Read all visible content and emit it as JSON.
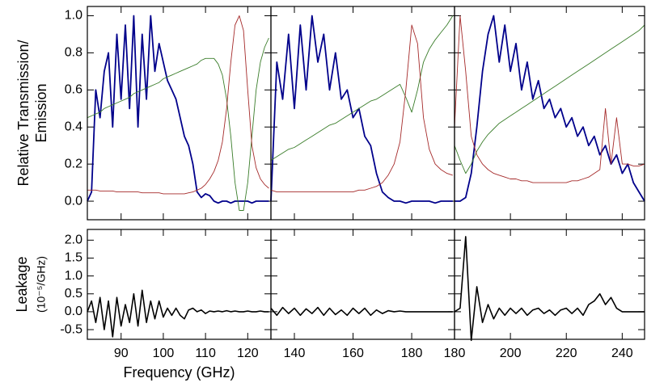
{
  "chart_data": [
    {
      "type": "line",
      "ylabel": [
        "Relative Transmission/",
        "Emission"
      ],
      "x": [
        82,
        83,
        84,
        85,
        86,
        87,
        88,
        89,
        90,
        91,
        92,
        93,
        94,
        95,
        96,
        97,
        98,
        99,
        100,
        101,
        102,
        103,
        104,
        105,
        106,
        107,
        108,
        109,
        110,
        111,
        112,
        113,
        114,
        115,
        116,
        117,
        118,
        119,
        120,
        121,
        122,
        123,
        124,
        125
      ],
      "xlim": [
        82,
        125.5
      ],
      "xticks": [
        90,
        100,
        110,
        120
      ],
      "ylim": [
        -0.1,
        1.05
      ],
      "yticks": [
        {
          "value": 0,
          "label": "0.0"
        },
        0.2,
        0.4,
        0.6,
        0.8,
        {
          "value": 1,
          "label": "1.0"
        }
      ],
      "series": [
        {
          "color": "#00008b",
          "values": [
            0.0,
            0.05,
            0.6,
            0.45,
            0.7,
            0.8,
            0.4,
            0.9,
            0.55,
            0.95,
            0.5,
            1.0,
            0.4,
            0.9,
            0.55,
            1.0,
            0.7,
            0.85,
            0.75,
            0.65,
            0.6,
            0.55,
            0.45,
            0.35,
            0.3,
            0.2,
            0.05,
            0.02,
            0.04,
            0.03,
            0.0,
            -0.01,
            0.0,
            0.0,
            -0.01,
            0.0,
            0.0,
            0.0,
            0.0,
            -0.01,
            0.0,
            0.0,
            0.0,
            0.0
          ]
        },
        {
          "color": "#3a7d2a",
          "values": [
            0.45,
            0.46,
            0.47,
            0.48,
            0.5,
            0.51,
            0.52,
            0.53,
            0.54,
            0.55,
            0.56,
            0.58,
            0.59,
            0.6,
            0.61,
            0.62,
            0.63,
            0.64,
            0.66,
            0.67,
            0.68,
            0.69,
            0.7,
            0.71,
            0.72,
            0.73,
            0.74,
            0.76,
            0.77,
            0.77,
            0.77,
            0.74,
            0.68,
            0.55,
            0.35,
            0.1,
            -0.05,
            -0.05,
            0.1,
            0.35,
            0.6,
            0.75,
            0.83,
            0.88
          ]
        },
        {
          "color": "#a52a2a",
          "values": [
            0.06,
            0.06,
            0.06,
            0.055,
            0.055,
            0.055,
            0.055,
            0.05,
            0.05,
            0.05,
            0.05,
            0.05,
            0.05,
            0.045,
            0.045,
            0.045,
            0.045,
            0.045,
            0.04,
            0.04,
            0.04,
            0.04,
            0.04,
            0.04,
            0.045,
            0.05,
            0.06,
            0.07,
            0.09,
            0.12,
            0.16,
            0.22,
            0.32,
            0.5,
            0.75,
            0.95,
            1.0,
            0.92,
            0.6,
            0.3,
            0.18,
            0.12,
            0.09,
            0.07
          ]
        }
      ]
    },
    {
      "type": "line",
      "x": [
        132,
        134,
        136,
        138,
        140,
        142,
        144,
        146,
        148,
        150,
        152,
        154,
        156,
        158,
        160,
        162,
        164,
        166,
        168,
        170,
        172,
        174,
        176,
        178,
        180,
        182,
        184,
        186,
        188,
        190,
        192,
        194
      ],
      "xlim": [
        132,
        194.6
      ],
      "xticks": [
        140,
        160,
        180
      ],
      "ylim": [
        -0.1,
        1.05
      ],
      "yticks": [
        0,
        0.2,
        0.4,
        0.6,
        0.8,
        1
      ],
      "series": [
        {
          "color": "#00008b",
          "values": [
            0.0,
            0.75,
            0.55,
            0.9,
            0.5,
            0.95,
            0.6,
            1.0,
            0.75,
            0.9,
            0.6,
            0.8,
            0.55,
            0.6,
            0.45,
            0.5,
            0.35,
            0.3,
            0.15,
            0.05,
            0.02,
            0.0,
            0.0,
            -0.01,
            0.0,
            0.0,
            0.0,
            0.0,
            -0.01,
            0.0,
            0.0,
            0.0
          ]
        },
        {
          "color": "#3a7d2a",
          "values": [
            0.22,
            0.24,
            0.26,
            0.28,
            0.29,
            0.31,
            0.33,
            0.35,
            0.37,
            0.39,
            0.41,
            0.42,
            0.44,
            0.46,
            0.48,
            0.5,
            0.52,
            0.54,
            0.55,
            0.57,
            0.59,
            0.61,
            0.63,
            0.56,
            0.48,
            0.6,
            0.75,
            0.82,
            0.87,
            0.91,
            0.95,
            1.0
          ]
        },
        {
          "color": "#a52a2a",
          "values": [
            0.06,
            0.05,
            0.05,
            0.05,
            0.05,
            0.05,
            0.05,
            0.05,
            0.05,
            0.05,
            0.05,
            0.05,
            0.05,
            0.05,
            0.05,
            0.06,
            0.06,
            0.07,
            0.08,
            0.1,
            0.14,
            0.2,
            0.32,
            0.6,
            0.95,
            0.85,
            0.45,
            0.28,
            0.2,
            0.17,
            0.15,
            0.14
          ]
        }
      ]
    },
    {
      "type": "line",
      "x": [
        180,
        182,
        184,
        186,
        188,
        190,
        192,
        194,
        196,
        198,
        200,
        202,
        204,
        206,
        208,
        210,
        212,
        214,
        216,
        218,
        220,
        222,
        224,
        226,
        228,
        230,
        232,
        234,
        236,
        238,
        240,
        242,
        244,
        246,
        248
      ],
      "xlim": [
        180,
        248
      ],
      "xticks": [
        180,
        200,
        220,
        240
      ],
      "ylim": [
        -0.1,
        1.05
      ],
      "yticks": [
        0,
        0.2,
        0.4,
        0.6,
        0.8,
        1
      ],
      "series": [
        {
          "color": "#00008b",
          "values": [
            0.0,
            0.0,
            0.02,
            0.15,
            0.4,
            0.7,
            0.9,
            1.0,
            0.75,
            0.95,
            0.7,
            0.85,
            0.6,
            0.75,
            0.55,
            0.65,
            0.5,
            0.55,
            0.45,
            0.5,
            0.4,
            0.45,
            0.35,
            0.4,
            0.3,
            0.35,
            0.25,
            0.3,
            0.2,
            0.25,
            0.15,
            0.2,
            0.1,
            0.05,
            0.0
          ]
        },
        {
          "color": "#3a7d2a",
          "values": [
            0.3,
            0.22,
            0.15,
            0.2,
            0.27,
            0.32,
            0.36,
            0.39,
            0.42,
            0.44,
            0.46,
            0.48,
            0.5,
            0.52,
            0.54,
            0.56,
            0.58,
            0.6,
            0.62,
            0.64,
            0.66,
            0.68,
            0.7,
            0.72,
            0.74,
            0.76,
            0.78,
            0.8,
            0.82,
            0.84,
            0.86,
            0.88,
            0.9,
            0.92,
            0.95
          ]
        },
        {
          "color": "#a52a2a",
          "values": [
            0.4,
            1.0,
            0.7,
            0.35,
            0.25,
            0.2,
            0.17,
            0.15,
            0.14,
            0.13,
            0.12,
            0.12,
            0.11,
            0.11,
            0.1,
            0.1,
            0.1,
            0.1,
            0.1,
            0.1,
            0.1,
            0.11,
            0.11,
            0.12,
            0.13,
            0.15,
            0.17,
            0.5,
            0.2,
            0.45,
            0.2,
            0.2,
            0.19,
            0.19,
            0.2
          ]
        }
      ]
    },
    {
      "type": "line",
      "ylabel": "Leakage",
      "ylabel_units": "(10⁻⁵/GHz)",
      "xlabel": "Frequency (GHz)",
      "x": [
        82,
        83,
        84,
        85,
        86,
        87,
        88,
        89,
        90,
        91,
        92,
        93,
        94,
        95,
        96,
        97,
        98,
        99,
        100,
        101,
        102,
        103,
        104,
        105,
        106,
        107,
        108,
        109,
        110,
        111,
        112,
        113,
        114,
        115,
        116,
        117,
        118,
        119,
        120,
        121,
        122,
        123,
        124,
        125
      ],
      "xlim": [
        82,
        125.5
      ],
      "xticks": [
        90,
        100,
        110,
        120
      ],
      "ylim": [
        -0.77,
        2.3
      ],
      "yticks": [
        -0.5,
        {
          "value": 0,
          "label": "0.0"
        },
        0.5,
        {
          "value": 1,
          "label": "1.0"
        },
        1.5,
        {
          "value": 2,
          "label": "2.0"
        }
      ],
      "series": [
        {
          "color": "#000000",
          "values": [
            0,
            0.3,
            -0.3,
            0.4,
            -0.5,
            0.3,
            -0.7,
            0.4,
            -0.4,
            0.2,
            -0.3,
            0.5,
            -0.4,
            0.6,
            -0.3,
            0.3,
            -0.2,
            0.3,
            -0.15,
            0.1,
            -0.1,
            0.1,
            -0.1,
            -0.2,
            0.05,
            0.1,
            0.0,
            0.05,
            -0.05,
            0.02,
            0.0,
            0.02,
            0.0,
            0.03,
            0.0,
            0.02,
            0.0,
            0.0,
            0.02,
            0.0,
            0.0,
            0.02,
            0.0,
            0.0
          ]
        }
      ]
    },
    {
      "type": "line",
      "x": [
        132,
        134,
        136,
        138,
        140,
        142,
        144,
        146,
        148,
        150,
        152,
        154,
        156,
        158,
        160,
        162,
        164,
        166,
        168,
        170,
        172,
        174,
        176,
        178,
        180,
        182,
        184,
        186,
        188,
        190,
        192,
        194
      ],
      "xlim": [
        132,
        194.6
      ],
      "xticks": [
        140,
        160,
        180
      ],
      "ylim": [
        -0.77,
        2.3
      ],
      "yticks": [
        -0.5,
        0,
        0.5,
        1,
        1.5,
        2
      ],
      "series": [
        {
          "color": "#000000",
          "values": [
            0.1,
            -0.1,
            0.12,
            -0.05,
            0.1,
            -0.1,
            0.08,
            -0.05,
            0.12,
            -0.1,
            0.1,
            -0.08,
            0.05,
            -0.1,
            0.1,
            -0.05,
            0.1,
            -0.1,
            0.05,
            -0.05,
            0.03,
            0.0,
            0.02,
            0.0,
            0.0,
            0.0,
            0.0,
            0.0,
            0.0,
            0.0,
            0.0,
            0.0
          ]
        }
      ]
    },
    {
      "type": "line",
      "x": [
        180,
        182,
        184,
        186,
        188,
        190,
        192,
        194,
        196,
        198,
        200,
        202,
        204,
        206,
        208,
        210,
        212,
        214,
        216,
        218,
        220,
        222,
        224,
        226,
        228,
        230,
        232,
        234,
        236,
        238,
        240,
        242,
        244,
        246,
        248
      ],
      "xlim": [
        180,
        248
      ],
      "xticks": [
        180,
        200,
        220,
        240
      ],
      "ylim": [
        -0.77,
        2.3
      ],
      "yticks": [
        -0.5,
        0,
        0.5,
        1,
        1.5,
        2
      ],
      "series": [
        {
          "color": "#000000",
          "values": [
            0,
            0.1,
            2.1,
            -0.8,
            0.7,
            -0.3,
            0.2,
            -0.2,
            0.1,
            -0.1,
            0.1,
            -0.05,
            0.1,
            -0.1,
            0.05,
            0.1,
            -0.05,
            0.05,
            -0.1,
            0.05,
            0.1,
            -0.05,
            0.1,
            -0.1,
            0.2,
            0.3,
            0.5,
            0.2,
            0.4,
            0.1,
            0.0,
            0.0,
            0.0,
            0.0,
            0.0
          ]
        }
      ]
    }
  ]
}
